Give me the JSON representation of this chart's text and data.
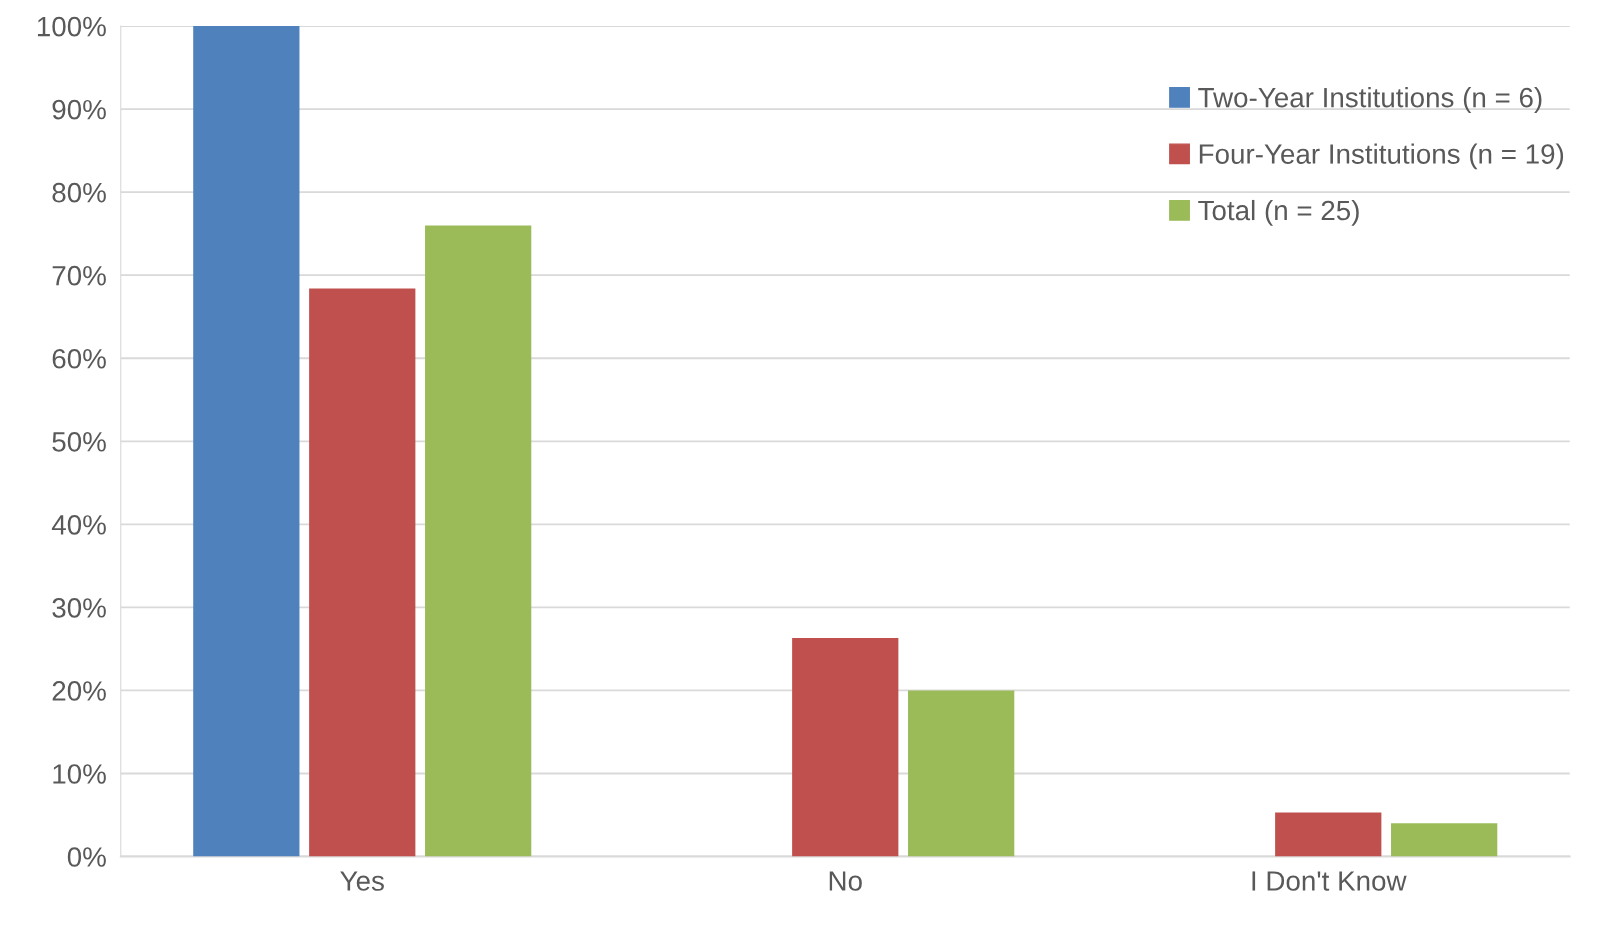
{
  "chart_data": {
    "type": "bar",
    "categories": [
      "Yes",
      "No",
      "I Don't Know"
    ],
    "series": [
      {
        "name": "Two-Year Institutions (n = 6)",
        "color": "#4f81bd",
        "values": [
          100,
          0,
          0
        ]
      },
      {
        "name": "Four-Year Institutions (n = 19)",
        "color": "#c0504d",
        "values": [
          68.4,
          26.3,
          5.3
        ]
      },
      {
        "name": "Total (n = 25)",
        "color": "#9bbb59",
        "values": [
          76,
          20,
          4
        ]
      }
    ],
    "ylim": [
      0,
      100
    ],
    "yticks": [
      {
        "value": 0,
        "label": "0%"
      },
      {
        "value": 10,
        "label": "10%"
      },
      {
        "value": 20,
        "label": "20%"
      },
      {
        "value": 30,
        "label": "30%"
      },
      {
        "value": 40,
        "label": "40%"
      },
      {
        "value": 50,
        "label": "50%"
      },
      {
        "value": 60,
        "label": "60%"
      },
      {
        "value": 70,
        "label": "70%"
      },
      {
        "value": 80,
        "label": "80%"
      },
      {
        "value": 90,
        "label": "90%"
      },
      {
        "value": 100,
        "label": "100%"
      }
    ],
    "grid": "y",
    "legend": "top right"
  }
}
